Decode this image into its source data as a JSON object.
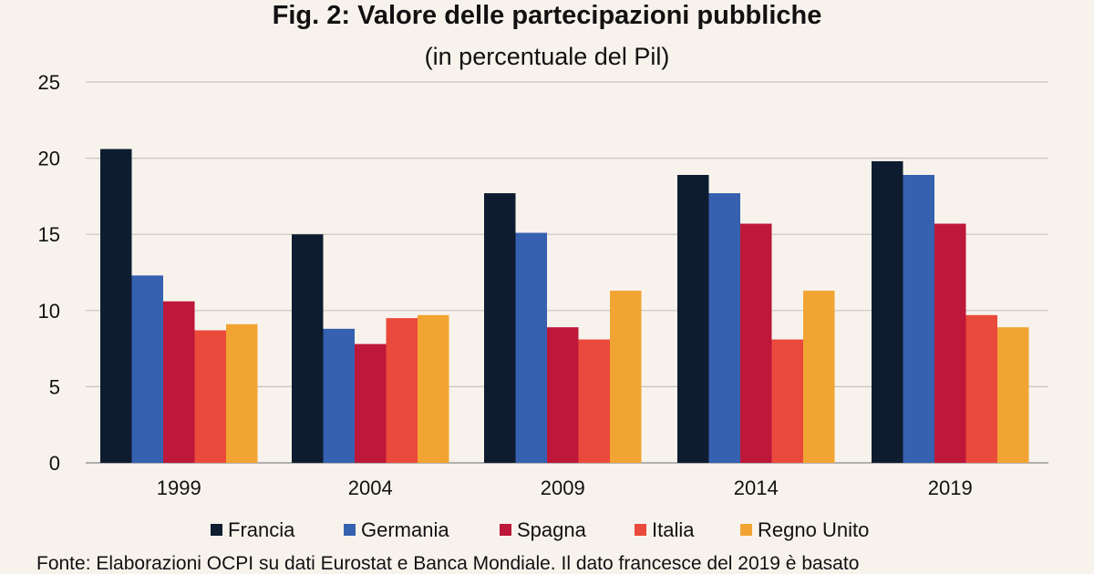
{
  "chart_data": {
    "type": "bar",
    "title": "Fig. 2: Valore delle partecipazioni pubbliche",
    "subtitle": "(in percentuale del Pil)",
    "xlabel": "",
    "ylabel": "",
    "categories": [
      "1999",
      "2004",
      "2009",
      "2014",
      "2019"
    ],
    "ylim": [
      0,
      25
    ],
    "yticks": [
      0,
      5,
      10,
      15,
      20,
      25
    ],
    "grid": true,
    "legend_position": "bottom",
    "series": [
      {
        "name": "Francia",
        "color": "#0e1c30",
        "values": [
          20.6,
          15.0,
          17.7,
          18.9,
          19.8
        ]
      },
      {
        "name": "Germania",
        "color": "#3661b0",
        "values": [
          12.3,
          8.8,
          15.1,
          17.7,
          18.9
        ]
      },
      {
        "name": "Spagna",
        "color": "#bd1739",
        "values": [
          10.6,
          7.8,
          8.9,
          15.7,
          15.7
        ]
      },
      {
        "name": "Italia",
        "color": "#ea4a3c",
        "values": [
          8.7,
          9.5,
          8.1,
          8.1,
          9.7
        ]
      },
      {
        "name": "Regno Unito",
        "color": "#f2a432",
        "values": [
          9.1,
          9.7,
          11.3,
          11.3,
          8.9
        ]
      }
    ],
    "source": "Fonte: Elaborazioni OCPI su dati Eurostat e Banca Mondiale. Il dato francesce del 2019 è basato"
  }
}
